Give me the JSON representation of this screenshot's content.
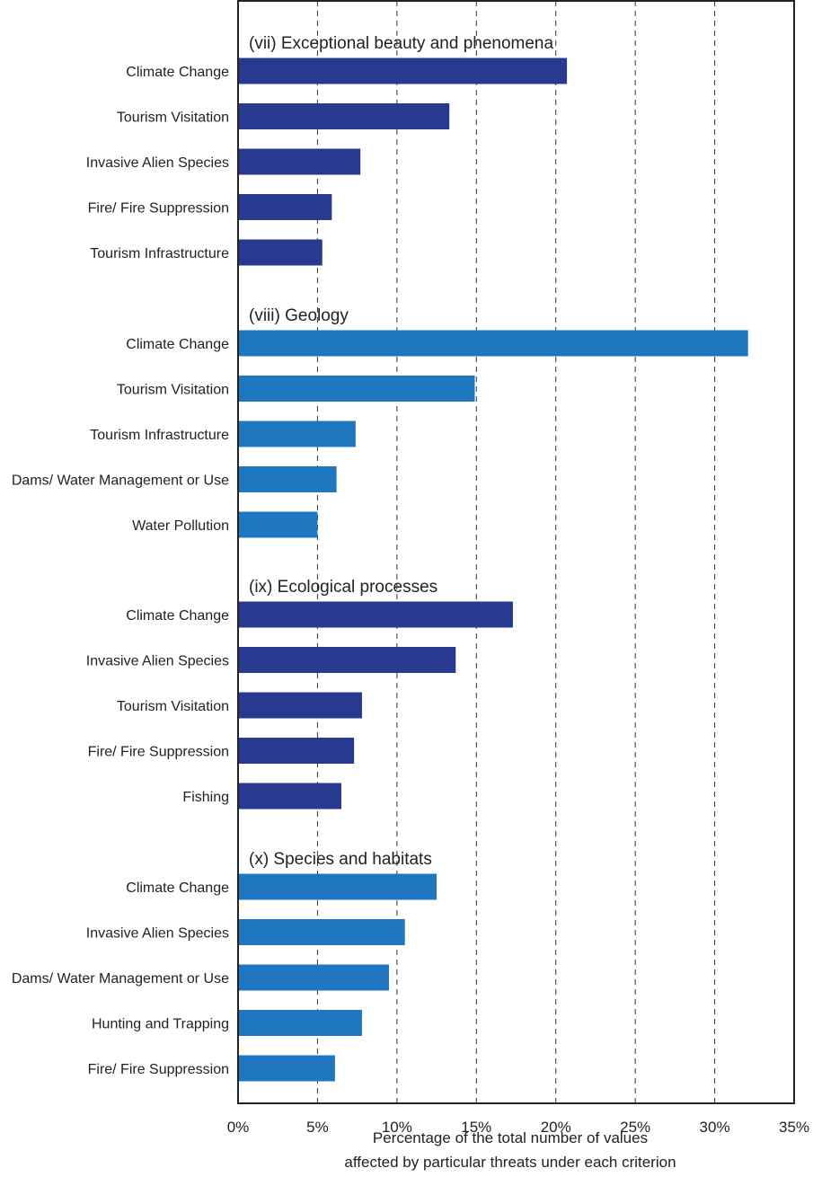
{
  "chart_data": {
    "type": "bar",
    "orientation": "horizontal",
    "xlabel": [
      "Percentage of the total number of values",
      "affected by particular threats under each criterion"
    ],
    "xlim": [
      0,
      35
    ],
    "xticks": [
      0,
      5,
      10,
      15,
      20,
      25,
      30,
      35
    ],
    "xtick_labels": [
      "0%",
      "5%",
      "10%",
      "15%",
      "20%",
      "25%",
      "30%",
      "35%"
    ],
    "grid": "vertical dashed lines at each tick",
    "groups": [
      {
        "title": "(vii) Exceptional beauty and phenomena",
        "color": "#283a8f",
        "categories": [
          "Climate Change",
          "Tourism Visitation",
          "Invasive Alien Species",
          "Fire/ Fire Suppression",
          "Tourism Infrastructure"
        ],
        "values": [
          20.7,
          13.3,
          7.7,
          5.9,
          5.3
        ]
      },
      {
        "title": "(viii) Geology",
        "color": "#1f78bf",
        "categories": [
          "Climate Change",
          "Tourism Visitation",
          "Tourism Infrastructure",
          "Dams/ Water Management or Use",
          "Water Pollution"
        ],
        "values": [
          32.1,
          14.9,
          7.4,
          6.2,
          5.0
        ]
      },
      {
        "title": "(ix) Ecological processes",
        "color": "#283a8f",
        "categories": [
          "Climate Change",
          "Invasive Alien Species",
          "Tourism Visitation",
          "Fire/ Fire Suppression",
          "Fishing"
        ],
        "values": [
          17.3,
          13.7,
          7.8,
          7.3,
          6.5
        ]
      },
      {
        "title": "(x) Species and habitats",
        "color": "#1f78bf",
        "categories": [
          "Climate Change",
          "Invasive Alien Species",
          "Dams/ Water Management or Use",
          "Hunting and Trapping",
          "Fire/ Fire Suppression"
        ],
        "values": [
          12.5,
          10.5,
          9.5,
          7.8,
          6.1
        ]
      }
    ]
  }
}
